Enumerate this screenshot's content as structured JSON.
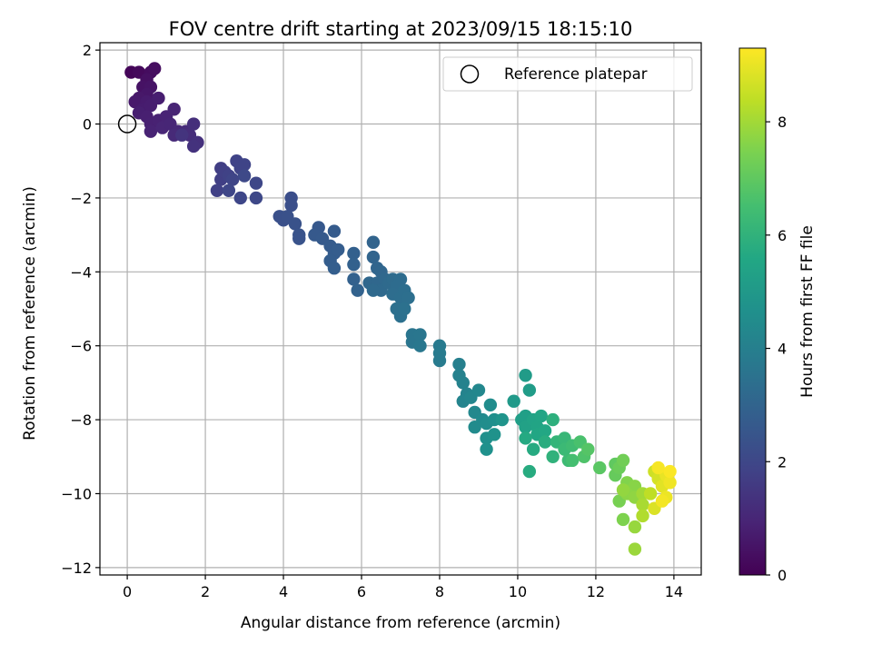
{
  "chart_data": {
    "type": "scatter",
    "title": "FOV centre drift starting at 2023/09/15 18:15:10",
    "xlabel": "Angular distance from reference (arcmin)",
    "ylabel": "Rotation from reference (arcmin)",
    "xlim": [
      -0.7,
      14.7
    ],
    "ylim": [
      -12.2,
      2.2
    ],
    "x_ticks": [
      0,
      2,
      4,
      6,
      8,
      10,
      12,
      14
    ],
    "y_ticks": [
      -12,
      -10,
      -8,
      -6,
      -4,
      -2,
      0,
      2
    ],
    "x_tick_labels": [
      "0",
      "2",
      "4",
      "6",
      "8",
      "10",
      "12",
      "14"
    ],
    "y_tick_labels": [
      "−12",
      "−10",
      "−8",
      "−6",
      "−4",
      "−2",
      "0",
      "2"
    ],
    "grid": true,
    "legend": {
      "placement": "upper right",
      "entries": [
        {
          "label": "Reference platepar",
          "marker": "open-circle",
          "x": 0,
          "y": 0
        }
      ]
    },
    "colorbar": {
      "label": "Hours from first FF file",
      "colormap": "viridis",
      "range": [
        0,
        9.3
      ],
      "ticks": [
        0,
        2,
        4,
        6,
        8
      ],
      "tick_labels": [
        "0",
        "2",
        "4",
        "6",
        "8"
      ]
    },
    "points": [
      [
        0.1,
        1.4,
        0.1
      ],
      [
        0.3,
        1.4,
        0.2
      ],
      [
        0.6,
        1.4,
        0.3
      ],
      [
        0.7,
        1.5,
        0.35
      ],
      [
        0.5,
        1.2,
        0.4
      ],
      [
        0.4,
        1.0,
        0.45
      ],
      [
        0.6,
        1.0,
        0.5
      ],
      [
        0.5,
        0.8,
        0.55
      ],
      [
        0.3,
        0.7,
        0.6
      ],
      [
        0.2,
        0.6,
        0.65
      ],
      [
        0.5,
        0.6,
        0.7
      ],
      [
        0.4,
        0.4,
        0.72
      ],
      [
        0.6,
        0.5,
        0.75
      ],
      [
        0.8,
        0.7,
        0.78
      ],
      [
        0.3,
        0.3,
        0.8
      ],
      [
        0.5,
        0.2,
        0.82
      ],
      [
        0.6,
        0.0,
        0.85
      ],
      [
        0.8,
        0.1,
        0.88
      ],
      [
        0.6,
        -0.2,
        0.9
      ],
      [
        1.0,
        0.2,
        0.92
      ],
      [
        1.2,
        0.4,
        0.95
      ],
      [
        0.9,
        -0.1,
        0.98
      ],
      [
        1.1,
        0.0,
        1.0
      ],
      [
        1.3,
        -0.2,
        1.05
      ],
      [
        1.2,
        -0.3,
        1.1
      ],
      [
        1.5,
        -0.2,
        1.15
      ],
      [
        1.6,
        -0.3,
        1.2
      ],
      [
        1.7,
        0.0,
        1.25
      ],
      [
        1.8,
        -0.5,
        1.3
      ],
      [
        1.7,
        -0.6,
        1.35
      ],
      [
        1.4,
        -0.3,
        1.4
      ],
      [
        2.4,
        -1.2,
        1.7
      ],
      [
        2.4,
        -1.5,
        1.75
      ],
      [
        2.5,
        -1.3,
        1.78
      ],
      [
        2.3,
        -1.8,
        1.8
      ],
      [
        2.6,
        -1.4,
        1.82
      ],
      [
        2.8,
        -1.0,
        1.85
      ],
      [
        2.9,
        -1.2,
        1.88
      ],
      [
        3.0,
        -1.1,
        1.9
      ],
      [
        2.7,
        -1.5,
        1.92
      ],
      [
        2.6,
        -1.8,
        1.95
      ],
      [
        2.9,
        -2.0,
        1.98
      ],
      [
        3.3,
        -1.6,
        2.0
      ],
      [
        3.3,
        -2.0,
        2.02
      ],
      [
        3.0,
        -1.4,
        2.05
      ],
      [
        4.2,
        -2.0,
        2.25
      ],
      [
        4.2,
        -2.2,
        2.28
      ],
      [
        3.9,
        -2.5,
        2.3
      ],
      [
        4.0,
        -2.6,
        2.32
      ],
      [
        4.1,
        -2.5,
        2.35
      ],
      [
        4.3,
        -2.7,
        2.38
      ],
      [
        4.4,
        -3.0,
        2.4
      ],
      [
        4.4,
        -3.1,
        2.42
      ],
      [
        4.9,
        -2.8,
        2.6
      ],
      [
        4.8,
        -3.0,
        2.62
      ],
      [
        5.0,
        -3.1,
        2.65
      ],
      [
        5.3,
        -2.9,
        2.68
      ],
      [
        5.2,
        -3.3,
        2.7
      ],
      [
        5.3,
        -3.5,
        2.72
      ],
      [
        5.4,
        -3.4,
        2.74
      ],
      [
        5.2,
        -3.7,
        2.76
      ],
      [
        5.3,
        -3.9,
        2.78
      ],
      [
        5.8,
        -3.5,
        2.85
      ],
      [
        5.8,
        -3.8,
        2.88
      ],
      [
        5.8,
        -4.2,
        2.9
      ],
      [
        5.9,
        -4.5,
        2.92
      ],
      [
        6.3,
        -3.2,
        3.0
      ],
      [
        6.3,
        -3.6,
        3.02
      ],
      [
        6.4,
        -3.9,
        3.05
      ],
      [
        6.5,
        -4.0,
        3.08
      ],
      [
        6.2,
        -4.3,
        3.1
      ],
      [
        6.4,
        -4.3,
        3.12
      ],
      [
        6.6,
        -4.2,
        3.15
      ],
      [
        6.5,
        -4.5,
        3.18
      ],
      [
        6.3,
        -4.5,
        3.2
      ],
      [
        6.7,
        -4.3,
        3.22
      ],
      [
        6.8,
        -4.2,
        3.25
      ],
      [
        7.0,
        -4.2,
        3.28
      ],
      [
        6.9,
        -4.4,
        3.3
      ],
      [
        6.8,
        -4.6,
        3.32
      ],
      [
        7.0,
        -4.7,
        3.35
      ],
      [
        7.1,
        -4.5,
        3.38
      ],
      [
        7.2,
        -4.7,
        3.4
      ],
      [
        6.9,
        -5.0,
        3.42
      ],
      [
        7.0,
        -5.2,
        3.45
      ],
      [
        7.1,
        -5.0,
        3.48
      ],
      [
        7.3,
        -5.7,
        3.6
      ],
      [
        7.3,
        -5.9,
        3.62
      ],
      [
        7.5,
        -5.7,
        3.65
      ],
      [
        7.5,
        -6.0,
        3.68
      ],
      [
        8.0,
        -6.0,
        3.8
      ],
      [
        8.0,
        -6.2,
        3.82
      ],
      [
        8.0,
        -6.4,
        3.85
      ],
      [
        8.5,
        -6.5,
        4.0
      ],
      [
        8.5,
        -6.8,
        4.05
      ],
      [
        8.6,
        -7.0,
        4.1
      ],
      [
        8.7,
        -7.3,
        4.15
      ],
      [
        8.6,
        -7.5,
        4.2
      ],
      [
        8.8,
        -7.4,
        4.25
      ],
      [
        9.0,
        -7.2,
        4.3
      ],
      [
        8.9,
        -7.8,
        4.35
      ],
      [
        9.1,
        -8.0,
        4.4
      ],
      [
        8.9,
        -8.2,
        4.45
      ],
      [
        9.3,
        -7.6,
        4.5
      ],
      [
        9.2,
        -8.1,
        4.55
      ],
      [
        9.4,
        -8.0,
        4.6
      ],
      [
        9.2,
        -8.5,
        4.65
      ],
      [
        9.2,
        -8.8,
        4.7
      ],
      [
        9.4,
        -8.4,
        4.75
      ],
      [
        9.6,
        -8.0,
        4.8
      ],
      [
        9.9,
        -7.5,
        5.0
      ],
      [
        10.2,
        -6.8,
        5.1
      ],
      [
        10.3,
        -7.2,
        5.15
      ],
      [
        10.1,
        -8.0,
        5.2
      ],
      [
        10.2,
        -7.9,
        5.25
      ],
      [
        10.3,
        -8.1,
        5.3
      ],
      [
        10.2,
        -8.2,
        5.35
      ],
      [
        10.4,
        -8.0,
        5.4
      ],
      [
        10.5,
        -8.2,
        5.45
      ],
      [
        10.6,
        -7.9,
        5.5
      ],
      [
        10.5,
        -8.4,
        5.55
      ],
      [
        10.7,
        -8.3,
        5.6
      ],
      [
        10.2,
        -8.5,
        5.65
      ],
      [
        10.4,
        -8.8,
        5.7
      ],
      [
        10.3,
        -9.4,
        5.75
      ],
      [
        10.7,
        -8.6,
        5.8
      ],
      [
        10.9,
        -8.0,
        5.9
      ],
      [
        10.9,
        -9.0,
        6.0
      ],
      [
        11.0,
        -8.6,
        6.1
      ],
      [
        11.2,
        -8.5,
        6.2
      ],
      [
        11.2,
        -8.8,
        6.3
      ],
      [
        11.3,
        -9.1,
        6.35
      ],
      [
        11.4,
        -8.7,
        6.4
      ],
      [
        11.4,
        -9.1,
        6.5
      ],
      [
        11.6,
        -8.6,
        6.6
      ],
      [
        11.7,
        -9.0,
        6.7
      ],
      [
        11.8,
        -8.8,
        6.8
      ],
      [
        12.1,
        -9.3,
        6.9
      ],
      [
        12.5,
        -9.2,
        7.0
      ],
      [
        12.5,
        -9.5,
        7.1
      ],
      [
        12.6,
        -9.3,
        7.2
      ],
      [
        12.7,
        -9.1,
        7.3
      ],
      [
        12.6,
        -10.2,
        7.4
      ],
      [
        12.7,
        -10.7,
        7.5
      ],
      [
        12.8,
        -9.7,
        7.55
      ],
      [
        12.9,
        -9.9,
        7.6
      ],
      [
        13.0,
        -9.8,
        7.65
      ],
      [
        12.8,
        -10.0,
        7.7
      ],
      [
        13.0,
        -10.1,
        7.75
      ],
      [
        12.7,
        -9.9,
        7.8
      ],
      [
        13.0,
        -10.9,
        7.85
      ],
      [
        13.0,
        -11.5,
        7.9
      ],
      [
        13.2,
        -10.0,
        8.0
      ],
      [
        13.2,
        -10.3,
        8.1
      ],
      [
        13.2,
        -10.6,
        8.2
      ],
      [
        13.4,
        -10.0,
        8.4
      ],
      [
        13.5,
        -9.4,
        8.6
      ],
      [
        13.6,
        -9.6,
        8.7
      ],
      [
        13.5,
        -10.4,
        8.8
      ],
      [
        13.7,
        -9.8,
        8.9
      ],
      [
        13.8,
        -9.5,
        9.0
      ],
      [
        13.8,
        -10.1,
        9.05
      ],
      [
        13.9,
        -9.7,
        9.1
      ],
      [
        13.7,
        -10.2,
        9.15
      ],
      [
        13.6,
        -9.3,
        9.2
      ],
      [
        13.9,
        -9.4,
        9.25
      ]
    ]
  }
}
